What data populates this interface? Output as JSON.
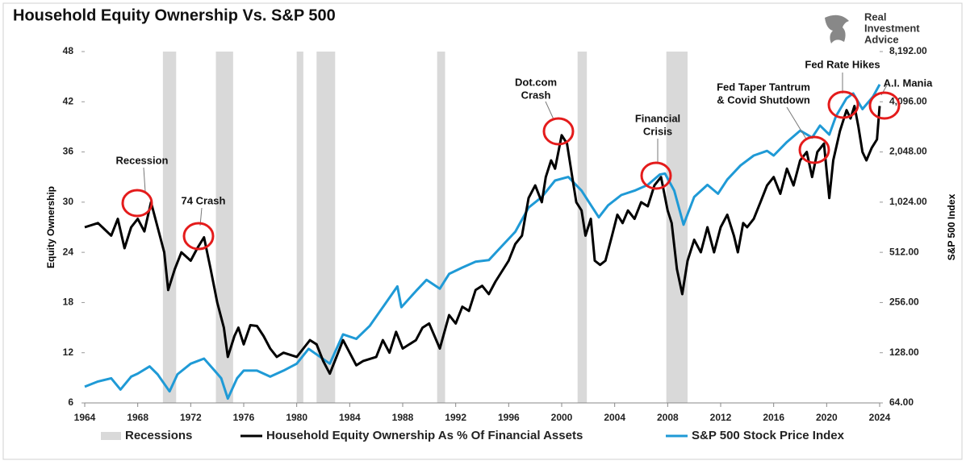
{
  "chart_data": {
    "type": "line",
    "title": "Household Equity Ownership Vs. S&P 500",
    "logo_text": [
      "Real",
      "Investment",
      "Advice"
    ],
    "y_label": "Equity Ownership",
    "y2_label": "S&P 500 Index",
    "xlim": [
      1964,
      2024
    ],
    "xticks": [
      1964,
      1968,
      1972,
      1976,
      1980,
      1984,
      1988,
      1992,
      1996,
      2000,
      2004,
      2008,
      2012,
      2016,
      2020,
      2024
    ],
    "ylim": [
      6,
      48
    ],
    "yticks": [
      6,
      12,
      18,
      24,
      30,
      36,
      42,
      48
    ],
    "y2lim": [
      64,
      8192
    ],
    "y2scale": "log",
    "y2ticks": [
      {
        "value": 64,
        "label": "64.00"
      },
      {
        "value": 128,
        "label": "128.00"
      },
      {
        "value": 256,
        "label": "256.00"
      },
      {
        "value": 512,
        "label": "512.00"
      },
      {
        "value": 1024,
        "label": "1,024.00"
      },
      {
        "value": 2048,
        "label": "2,048.00"
      },
      {
        "value": 4096,
        "label": "4,096.00"
      },
      {
        "value": 8192,
        "label": "8,192.00"
      }
    ],
    "recession_label": "Recessions",
    "recession_color": "#d9d9d9",
    "recessions": [
      [
        1969.9,
        1970.9
      ],
      [
        1973.9,
        1975.2
      ],
      [
        1980.0,
        1980.5
      ],
      [
        1981.5,
        1982.9
      ],
      [
        1990.6,
        1991.2
      ],
      [
        2001.2,
        2001.9
      ],
      [
        2007.9,
        2009.5
      ]
    ],
    "series": [
      {
        "name": "Household Equity Ownership As % Of Financial Assets",
        "color": "#000000",
        "x": [
          1964,
          1965,
          1966,
          1966.5,
          1967,
          1967.5,
          1968,
          1968.5,
          1969,
          1969.5,
          1970,
          1970.3,
          1970.8,
          1971.3,
          1972,
          1972.5,
          1973,
          1973.5,
          1974,
          1974.5,
          1974.8,
          1975.3,
          1975.6,
          1976,
          1976.5,
          1977,
          1977.5,
          1978,
          1978.5,
          1979,
          1980,
          1980.5,
          1981,
          1981.5,
          1982,
          1982.5,
          1983,
          1983.5,
          1984,
          1984.5,
          1985,
          1986,
          1986.5,
          1987,
          1987.5,
          1988,
          1989,
          1989.5,
          1990,
          1990.8,
          1991.5,
          1992,
          1992.5,
          1993,
          1993.5,
          1994,
          1994.5,
          1995,
          1996,
          1996.5,
          1997,
          1997.5,
          1998,
          1998.5,
          1998.8,
          1999.2,
          1999.5,
          2000,
          2000.4,
          2000.8,
          2001.1,
          2001.5,
          2001.8,
          2002.2,
          2002.5,
          2002.9,
          2003.3,
          2003.8,
          2004.2,
          2004.6,
          2005,
          2005.5,
          2006,
          2006.5,
          2007,
          2007.5,
          2008,
          2008.3,
          2008.7,
          2009.1,
          2009.5,
          2010,
          2010.5,
          2011,
          2011.5,
          2012,
          2012.5,
          2013,
          2013.3,
          2013.7,
          2014,
          2014.5,
          2015,
          2015.5,
          2016,
          2016.5,
          2017,
          2017.5,
          2018,
          2018.5,
          2018.9,
          2019.3,
          2019.8,
          2020.2,
          2020.5,
          2021,
          2021.5,
          2021.8,
          2022.1,
          2022.4,
          2022.7,
          2023,
          2023.4,
          2023.8,
          2024
        ],
        "values": [
          27,
          27.5,
          26,
          28,
          24.5,
          27,
          28,
          26.5,
          30,
          27,
          24,
          19.5,
          22,
          24,
          23,
          24.5,
          25.8,
          22,
          18,
          15,
          11.5,
          14,
          15,
          13,
          15.3,
          15.2,
          14,
          12.5,
          11.5,
          12,
          11.5,
          12.5,
          13.5,
          13,
          11,
          9.5,
          11.5,
          13.5,
          12,
          10.5,
          11,
          11.5,
          13.5,
          12,
          14.5,
          12.5,
          13.5,
          15,
          15.5,
          12.5,
          16.5,
          15.5,
          17.5,
          17,
          19.5,
          20,
          19,
          20.5,
          23,
          25,
          26,
          30.5,
          32,
          30,
          33,
          35,
          34,
          38,
          37,
          33,
          30,
          29,
          26,
          28,
          23,
          22.5,
          23,
          26,
          28.5,
          27.5,
          29,
          28,
          30,
          29.5,
          32,
          33,
          29,
          27.5,
          22,
          19,
          23,
          25.5,
          24,
          27,
          24,
          27,
          28.5,
          26,
          24,
          27.5,
          27,
          28,
          30,
          32,
          33,
          31,
          34,
          32,
          35,
          36,
          33,
          36,
          37,
          30.5,
          35,
          38.5,
          41,
          40,
          41.5,
          39,
          36,
          35,
          36.5,
          37.5,
          41.5
        ]
      },
      {
        "name": "S&P 500 Stock Price Index",
        "color": "#1f9ad6",
        "axis": "y2",
        "x": [
          1964,
          1965,
          1966,
          1966.7,
          1967.5,
          1968,
          1968.9,
          1969.5,
          1970.4,
          1971,
          1972,
          1973,
          1973.8,
          1974.3,
          1974.8,
          1975.5,
          1976,
          1977,
          1978,
          1979,
          1980,
          1980.9,
          1981.5,
          1982.5,
          1983.5,
          1984.5,
          1985.5,
          1986.5,
          1987.6,
          1987.9,
          1989,
          1989.8,
          1990.8,
          1991.5,
          1992.5,
          1993.5,
          1994.5,
          1995.5,
          1996.5,
          1997.5,
          1998.5,
          1999.5,
          2000.5,
          2001.5,
          2002.8,
          2003.5,
          2004.5,
          2005.5,
          2006.5,
          2007.4,
          2007.8,
          2008.5,
          2009.2,
          2010,
          2011,
          2011.8,
          2012.5,
          2013.5,
          2014.5,
          2015.5,
          2016,
          2017,
          2018,
          2018.9,
          2019.5,
          2020.2,
          2020.7,
          2021.5,
          2022,
          2022.7,
          2023.5,
          2024
        ],
        "values": [
          80,
          86,
          90,
          77,
          92,
          96,
          106,
          95,
          75,
          95,
          110,
          118,
          100,
          90,
          68,
          90,
          100,
          100,
          92,
          100,
          110,
          135,
          125,
          110,
          165,
          155,
          185,
          240,
          320,
          240,
          300,
          350,
          310,
          380,
          415,
          450,
          460,
          560,
          680,
          950,
          1100,
          1380,
          1450,
          1200,
          830,
          980,
          1130,
          1200,
          1300,
          1500,
          1520,
          1200,
          750,
          1100,
          1300,
          1150,
          1400,
          1700,
          1950,
          2080,
          1950,
          2350,
          2750,
          2500,
          2950,
          2600,
          3350,
          4300,
          4600,
          3700,
          4400,
          5200
        ]
      }
    ],
    "annotations": [
      [
        "Recession"
      ],
      [
        "74 Crash"
      ],
      [
        "Dot.com",
        "Crash"
      ],
      [
        "Financial",
        "Crisis"
      ],
      [
        "Fed Taper Tantrum",
        "& Covid Shutdown"
      ],
      [
        "Fed Rate Hikes"
      ],
      [
        "A.I. Mania"
      ]
    ]
  }
}
